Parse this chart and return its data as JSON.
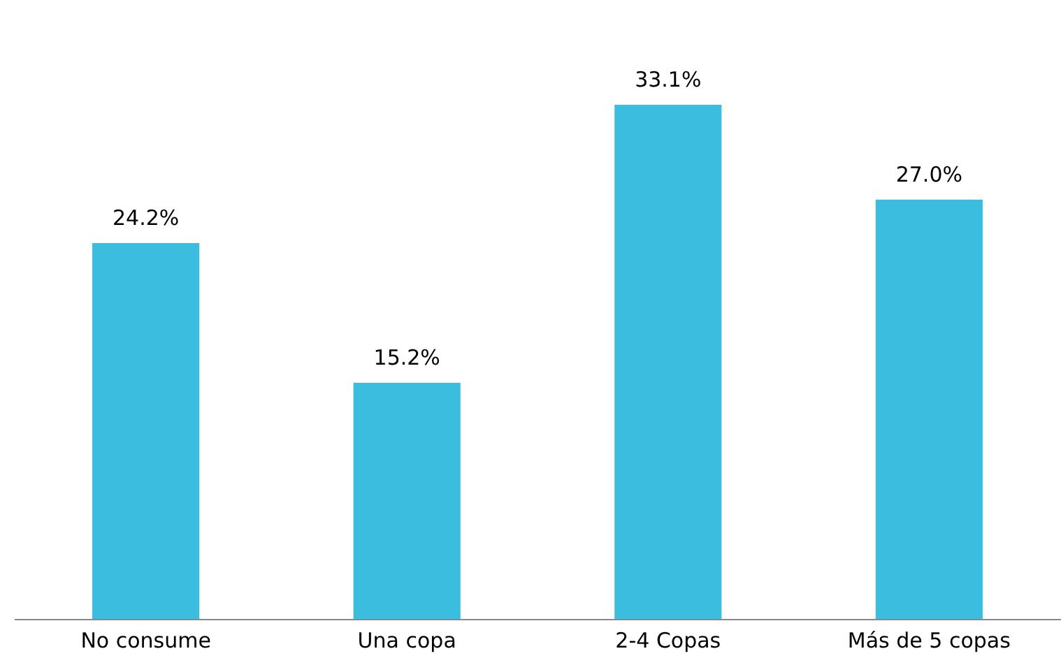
{
  "chart_data": {
    "type": "bar",
    "categories": [
      "No consume",
      "Una copa",
      "2-4 Copas",
      "Más de 5 copas"
    ],
    "values": [
      24.2,
      15.2,
      33.1,
      27.0
    ],
    "value_labels": [
      "24.2%",
      "15.2%",
      "33.1%",
      "27.0%"
    ],
    "color": "#3bbde0"
  }
}
